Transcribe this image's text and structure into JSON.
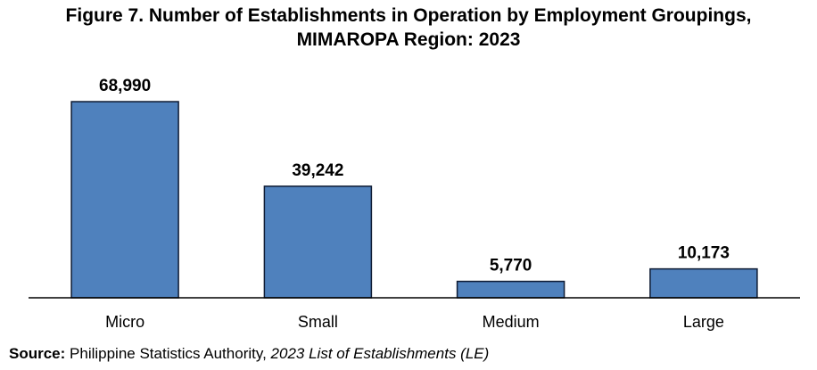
{
  "chart_data": {
    "type": "bar",
    "title_line1": "Figure 7. Number of Establishments in Operation by Employment Groupings,",
    "title_line2": "MIMAROPA Region: 2023",
    "categories": [
      "Micro",
      "Small",
      "Medium",
      "Large"
    ],
    "values": [
      68990,
      39242,
      5770,
      10173
    ],
    "value_labels": [
      "68,990",
      "39,242",
      "5,770",
      "10,173"
    ],
    "xlabel": "",
    "ylabel": "",
    "ylim": [
      0,
      80000
    ],
    "grid": false,
    "bar_color": "#4F81BD",
    "bar_edge_color": "#0E1B33"
  },
  "source": {
    "label": "Source:",
    "org": " Philippine Statistics Authority, ",
    "publication": "2023 List of Establishments (LE)"
  }
}
